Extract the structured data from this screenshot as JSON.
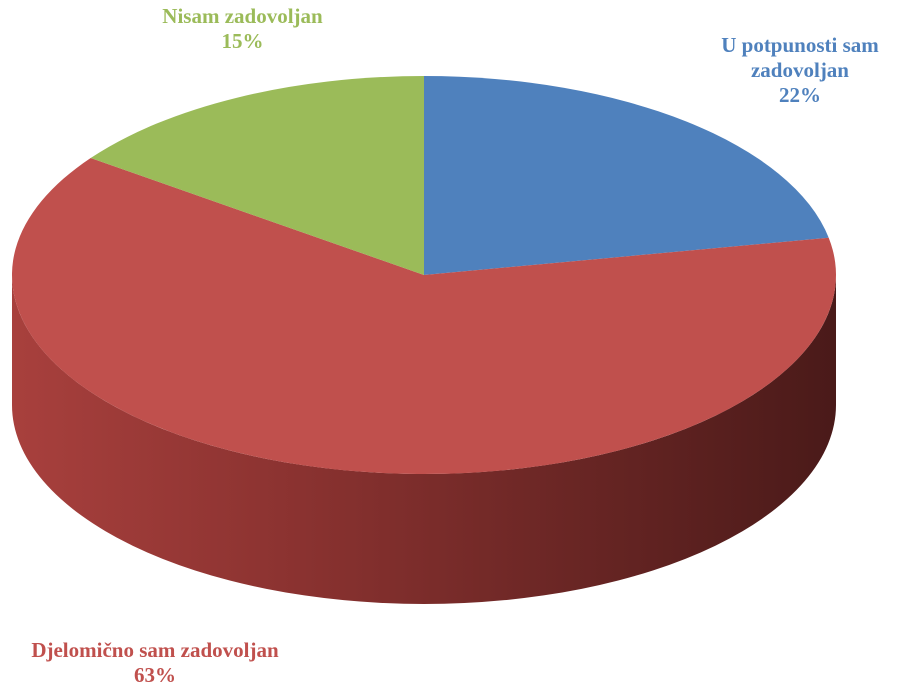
{
  "chart_data": {
    "type": "pie",
    "categories": [
      "U potpunosti sam zadovoljan",
      "Djelomično sam zadovoljan",
      "Nisam zadovoljan"
    ],
    "values": [
      22,
      63,
      15
    ],
    "value_labels": [
      "22%",
      "63%",
      "15%"
    ],
    "colors": [
      "#4f81bd",
      "#c0504d",
      "#9bbb59"
    ]
  }
}
